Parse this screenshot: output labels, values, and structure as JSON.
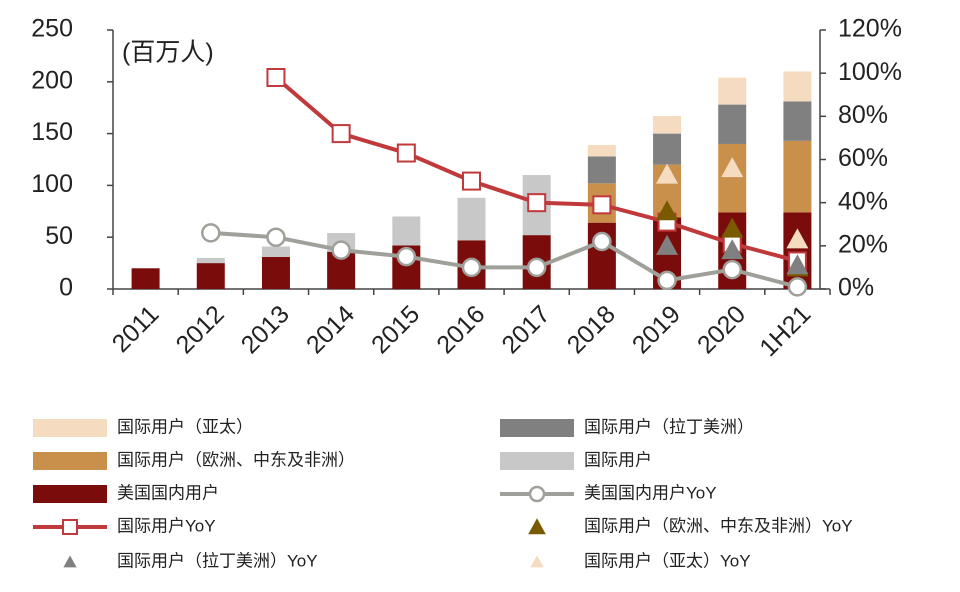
{
  "chart_data": {
    "type": "bar",
    "annotation": "(百万人)",
    "categories": [
      "2011",
      "2012",
      "2013",
      "2014",
      "2015",
      "2016",
      "2017",
      "2018",
      "2019",
      "2020",
      "1H21"
    ],
    "ylim": [
      0,
      250
    ],
    "yticks": [
      0,
      50,
      100,
      150,
      200,
      250
    ],
    "y2lim": [
      0,
      120
    ],
    "y2ticks": [
      {
        "value": 0,
        "label": "0%"
      },
      {
        "value": 20,
        "label": "20%"
      },
      {
        "value": 40,
        "label": "40%"
      },
      {
        "value": 60,
        "label": "60%"
      },
      {
        "value": 80,
        "label": "80%"
      },
      {
        "value": 100,
        "label": "100%"
      },
      {
        "value": 120,
        "label": "120%"
      }
    ],
    "series": [
      {
        "name": "美国国内用户",
        "type": "bar",
        "color": "#7a0c0c",
        "values": [
          20,
          25,
          31,
          36,
          42,
          47,
          52,
          64,
          69,
          74,
          74
        ]
      },
      {
        "name": "国际用户",
        "type": "bar",
        "color": "#c8c8c8",
        "values": [
          null,
          5,
          10,
          18,
          28,
          41,
          58,
          null,
          null,
          null,
          null
        ]
      },
      {
        "name": "国际用户（欧洲、中东及非洲）",
        "type": "bar",
        "color": "#c8904a",
        "values": [
          null,
          null,
          null,
          null,
          null,
          null,
          null,
          38,
          51,
          66,
          69
        ]
      },
      {
        "name": "国际用户（拉丁美洲）",
        "type": "bar",
        "color": "#808080",
        "values": [
          null,
          null,
          null,
          null,
          null,
          null,
          null,
          26,
          30,
          38,
          38
        ]
      },
      {
        "name": "国际用户（亚太）",
        "type": "bar",
        "color": "#f5dcc0",
        "values": [
          null,
          null,
          null,
          null,
          null,
          null,
          null,
          11,
          17,
          26,
          29
        ]
      },
      {
        "name": "美国国内用户YoY",
        "type": "line",
        "axis": "y2",
        "marker": "circle",
        "color": "#a0a09a",
        "values": [
          null,
          26,
          24,
          18,
          15,
          10,
          10,
          22,
          4,
          9,
          1
        ]
      },
      {
        "name": "国际用户YoY",
        "type": "line",
        "axis": "y2",
        "marker": "square",
        "color": "#c0393b",
        "values": [
          null,
          null,
          98,
          72,
          63,
          50,
          40,
          39,
          31,
          21,
          13
        ]
      },
      {
        "name": "国际用户（欧洲、中东及非洲）YoY",
        "type": "scatter",
        "axis": "y2",
        "marker": "triangle",
        "color": "#7a5a00",
        "values": [
          null,
          null,
          null,
          null,
          null,
          null,
          null,
          null,
          36,
          28,
          10
        ]
      },
      {
        "name": "国际用户（拉丁美洲）YoY",
        "type": "scatter",
        "axis": "y2",
        "marker": "triangle",
        "color": "#808080",
        "values": [
          null,
          null,
          null,
          null,
          null,
          null,
          null,
          null,
          20,
          18,
          11
        ]
      },
      {
        "name": "国际用户（亚太）YoY",
        "type": "scatter",
        "axis": "y2",
        "marker": "triangle",
        "color": "#f5dcc0",
        "values": [
          null,
          null,
          null,
          null,
          null,
          null,
          null,
          null,
          53,
          56,
          23
        ]
      }
    ]
  }
}
